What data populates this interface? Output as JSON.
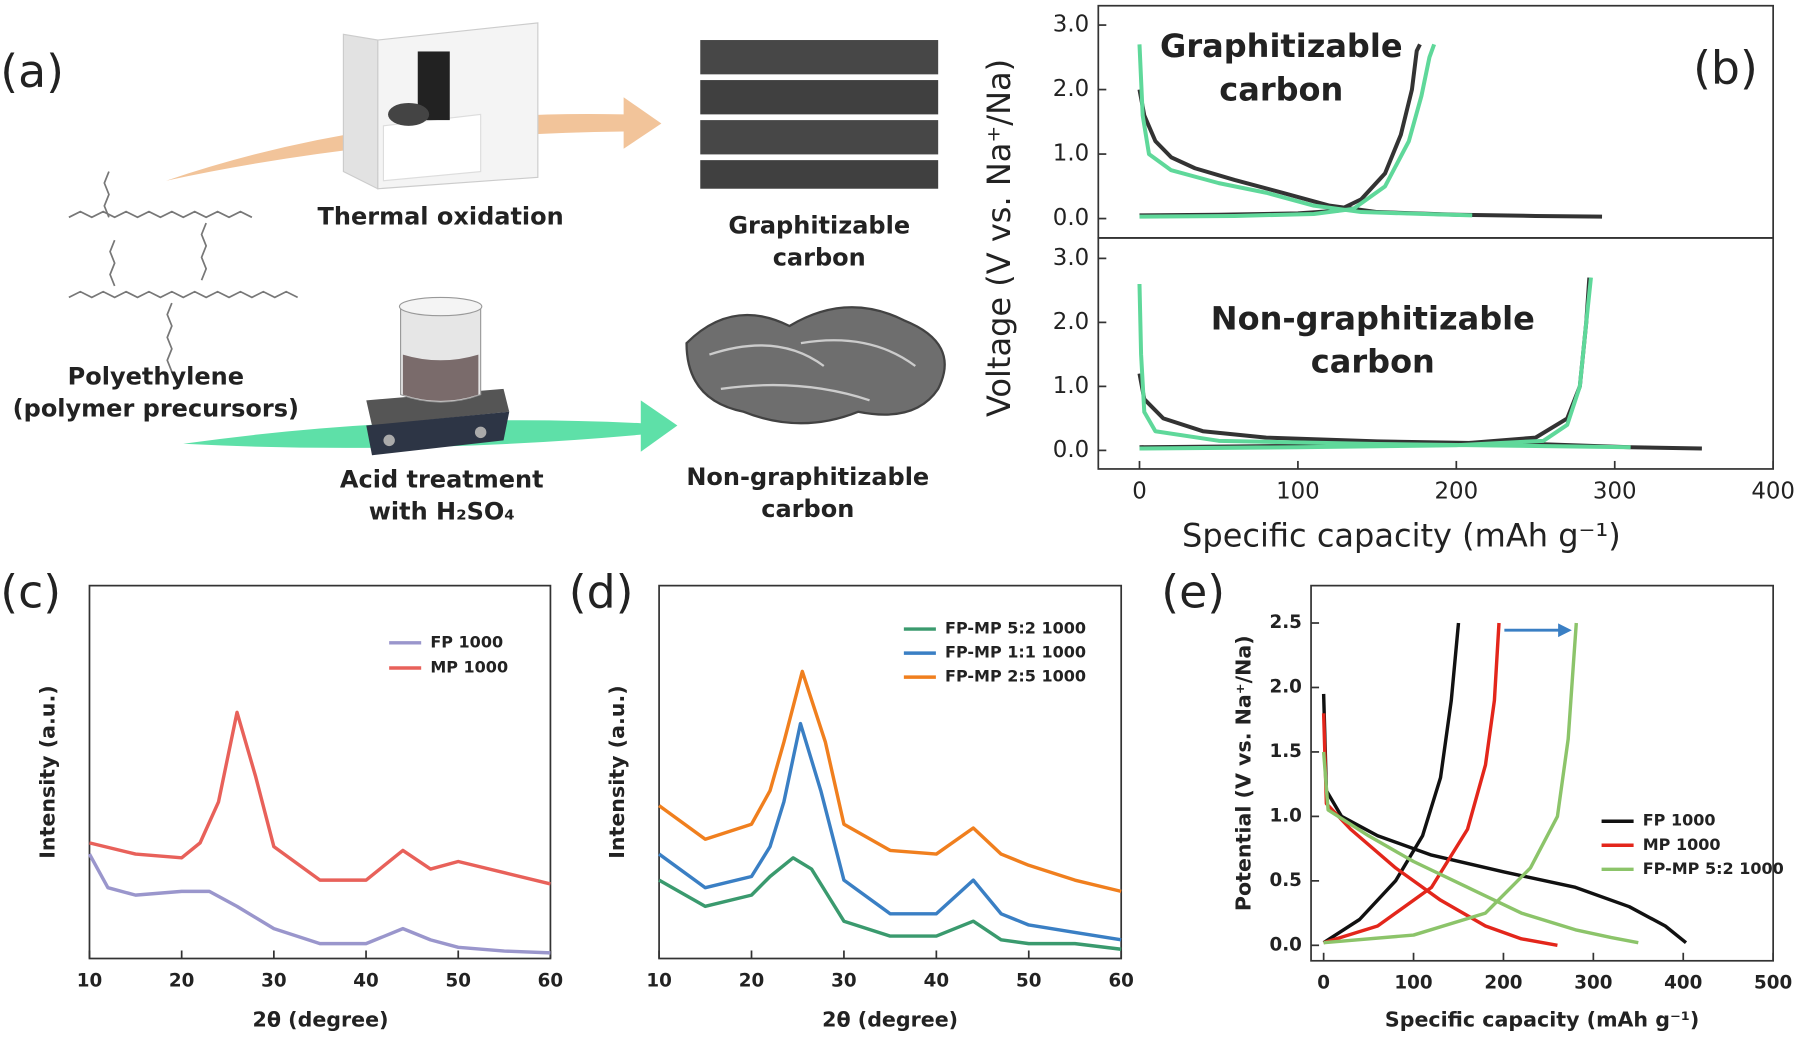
{
  "diagram": {
    "panel_label": "(a)",
    "thermal_oxidation": "Thermal oxidation",
    "graphitizable": [
      "Graphitizable",
      "carbon"
    ],
    "polyethylene": [
      "Polyethylene",
      "(polymer precursors)"
    ],
    "acid_treatment": [
      "Acid treatment",
      "with H₂SO₄"
    ],
    "non_graphitizable": [
      "Non-graphitizable",
      "carbon"
    ]
  },
  "chart_data": [
    {
      "type": "line",
      "panel_label": "(b)",
      "ylabel": "Voltage (V vs. Na⁺/Na)",
      "annotation": [
        "Graphitizable",
        "carbon"
      ],
      "xlim": [
        -26,
        400
      ],
      "ylim": [
        -0.3,
        3.3
      ],
      "yticks": [
        {
          "value": 0,
          "label": "0.0"
        },
        {
          "value": 1,
          "label": "1.0"
        },
        {
          "value": 2,
          "label": "2.0"
        },
        {
          "value": 3,
          "label": "3.0"
        }
      ],
      "series": [
        {
          "color": "#333333",
          "x": [
            0,
            3,
            10,
            20,
            35,
            60,
            90,
            120,
            150,
            200,
            250,
            292,
            null,
            0,
            50,
            100,
            125,
            140,
            155,
            165,
            172,
            175,
            177
          ],
          "values": [
            2.0,
            1.6,
            1.2,
            0.95,
            0.78,
            0.6,
            0.4,
            0.2,
            0.1,
            0.06,
            0.04,
            0.03,
            null,
            0.05,
            0.06,
            0.08,
            0.12,
            0.3,
            0.7,
            1.3,
            2.0,
            2.6,
            2.7
          ]
        },
        {
          "color": "#5fd89a",
          "x": [
            0,
            2,
            6,
            20,
            50,
            80,
            110,
            140,
            180,
            210,
            null,
            0,
            60,
            110,
            135,
            155,
            170,
            178,
            183,
            186
          ],
          "values": [
            2.7,
            1.6,
            1.0,
            0.75,
            0.55,
            0.4,
            0.2,
            0.1,
            0.07,
            0.05,
            null,
            0.03,
            0.04,
            0.07,
            0.15,
            0.5,
            1.2,
            1.9,
            2.5,
            2.7
          ]
        }
      ]
    },
    {
      "type": "line",
      "xlabel": "Specific capacity (mAh g⁻¹)",
      "annotation": [
        "Non-graphitizable",
        "carbon"
      ],
      "xlim": [
        -26,
        400
      ],
      "ylim": [
        -0.29,
        3.32
      ],
      "xticks": [
        0,
        100,
        200,
        300,
        400
      ],
      "yticks": [
        {
          "value": 0,
          "label": "0.0"
        },
        {
          "value": 1,
          "label": "1.0"
        },
        {
          "value": 2,
          "label": "2.0"
        },
        {
          "value": 3,
          "label": "3.0"
        }
      ],
      "series": [
        {
          "color": "#333333",
          "x": [
            0,
            3,
            15,
            40,
            80,
            150,
            250,
            310,
            355,
            null,
            0,
            100,
            200,
            250,
            270,
            278,
            282,
            284
          ],
          "values": [
            1.2,
            0.8,
            0.5,
            0.3,
            0.2,
            0.14,
            0.1,
            0.05,
            0.03,
            null,
            0.05,
            0.07,
            0.1,
            0.2,
            0.5,
            1.0,
            2.0,
            2.7
          ]
        },
        {
          "color": "#5fd89a",
          "x": [
            0,
            1,
            3,
            10,
            50,
            150,
            250,
            310,
            null,
            0,
            100,
            200,
            255,
            270,
            278,
            282,
            285
          ],
          "values": [
            2.6,
            1.5,
            0.6,
            0.3,
            0.15,
            0.1,
            0.07,
            0.05,
            null,
            0.03,
            0.05,
            0.08,
            0.15,
            0.4,
            1.0,
            2.0,
            2.7
          ]
        }
      ]
    },
    {
      "type": "line",
      "panel_label": "(c)",
      "xlabel": "2θ (degree)",
      "ylabel": "Intensity (a.u.)",
      "xlim": [
        10,
        60
      ],
      "ylim": [
        0,
        100
      ],
      "xticks": [
        10,
        20,
        30,
        40,
        50,
        60
      ],
      "series": [
        {
          "name": "FP 1000",
          "color": "#9a96cc",
          "x": [
            10,
            12,
            15,
            20,
            23,
            26,
            30,
            35,
            40,
            44,
            47,
            50,
            55,
            60
          ],
          "values": [
            28,
            19,
            17,
            18,
            18,
            14,
            8,
            4,
            4,
            8,
            5,
            3,
            2,
            1.5
          ]
        },
        {
          "name": "MP 1000",
          "color": "#e8615a",
          "x": [
            10,
            15,
            20,
            22,
            24,
            26,
            28,
            30,
            35,
            40,
            44,
            47,
            50,
            55,
            60
          ],
          "values": [
            31,
            28,
            27,
            31,
            42,
            66,
            49,
            30,
            21,
            21,
            29,
            24,
            26,
            23,
            20
          ]
        }
      ]
    },
    {
      "type": "line",
      "panel_label": "(d)",
      "xlabel": "2θ (degree)",
      "ylabel": "Intensity (a.u.)",
      "xlim": [
        10,
        60
      ],
      "ylim": [
        0,
        100
      ],
      "xticks": [
        10,
        20,
        30,
        40,
        50,
        60
      ],
      "series": [
        {
          "name": "FP-MP 5:2 1000",
          "color": "#3a9a6e",
          "x": [
            10,
            15,
            20,
            22,
            24.5,
            26.5,
            28,
            30,
            35,
            40,
            44,
            47,
            50,
            55,
            60
          ],
          "values": [
            21,
            14,
            17,
            22,
            27,
            24,
            18,
            10,
            6,
            6,
            10,
            5,
            4,
            4,
            2.5
          ]
        },
        {
          "name": "FP-MP 1:1 1000",
          "color": "#3a7fc4",
          "x": [
            10,
            15,
            20,
            22,
            23.5,
            25.3,
            27.5,
            30,
            35,
            40,
            44,
            47,
            50,
            55,
            60
          ],
          "values": [
            28,
            19,
            22,
            30,
            42,
            63,
            45,
            21,
            12,
            12,
            21,
            12,
            9,
            7,
            5
          ]
        },
        {
          "name": "FP-MP 2:5 1000",
          "color": "#f07f1e",
          "x": [
            10,
            15,
            20,
            22,
            23.5,
            25.5,
            28,
            30,
            35,
            40,
            44,
            47,
            50,
            55,
            60
          ],
          "values": [
            41,
            32,
            36,
            45,
            58,
            77,
            58,
            36,
            29,
            28,
            35,
            28,
            25,
            21,
            18
          ]
        }
      ]
    },
    {
      "type": "line",
      "panel_label": "(e)",
      "xlabel": "Specific capacity (mAh g⁻¹)",
      "ylabel": "Potential (V vs. Na⁺/Na)",
      "xlim": [
        -14,
        500
      ],
      "ylim": [
        -0.12,
        2.79
      ],
      "xticks": [
        0,
        100,
        200,
        300,
        400,
        500
      ],
      "yticks": [
        {
          "value": 0,
          "label": "0.0"
        },
        {
          "value": 0.5,
          "label": "0.5"
        },
        {
          "value": 1,
          "label": "1.0"
        },
        {
          "value": 1.5,
          "label": "1.5"
        },
        {
          "value": 2,
          "label": "2.0"
        },
        {
          "value": 2.5,
          "label": "2.5"
        }
      ],
      "series": [
        {
          "name": "FP 1000",
          "color": "#111111",
          "x": [
            0,
            3,
            20,
            60,
            120,
            200,
            280,
            340,
            380,
            403,
            null,
            0,
            40,
            80,
            110,
            130,
            142,
            150
          ],
          "values": [
            1.95,
            1.2,
            1.0,
            0.85,
            0.7,
            0.57,
            0.45,
            0.3,
            0.15,
            0.02,
            null,
            0.02,
            0.2,
            0.5,
            0.85,
            1.3,
            1.9,
            2.5
          ]
        },
        {
          "name": "MP 1000",
          "color": "#e3261b",
          "x": [
            0,
            3,
            30,
            80,
            130,
            180,
            220,
            260,
            null,
            0,
            60,
            120,
            160,
            180,
            190,
            195
          ],
          "values": [
            1.8,
            1.1,
            0.9,
            0.6,
            0.35,
            0.15,
            0.05,
            0.0,
            null,
            0.02,
            0.15,
            0.45,
            0.9,
            1.4,
            1.9,
            2.5
          ]
        },
        {
          "name": "FP-MP 5:2 1000",
          "color": "#8cc46a",
          "x": [
            0,
            5,
            50,
            100,
            160,
            220,
            280,
            320,
            350,
            null,
            0,
            100,
            180,
            230,
            260,
            272,
            278,
            281
          ],
          "values": [
            1.5,
            1.05,
            0.85,
            0.65,
            0.45,
            0.25,
            0.12,
            0.06,
            0.02,
            null,
            0.02,
            0.08,
            0.25,
            0.6,
            1.0,
            1.6,
            2.2,
            2.5
          ]
        }
      ]
    }
  ]
}
